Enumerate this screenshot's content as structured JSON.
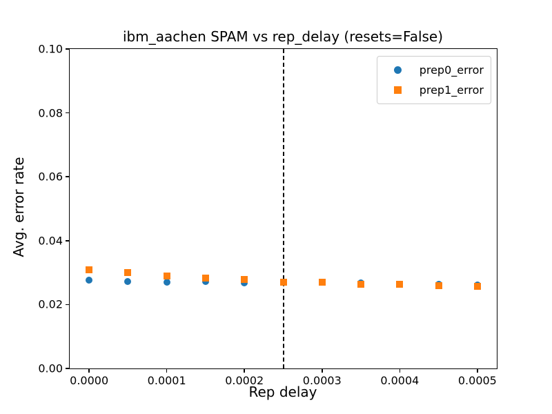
{
  "colors": {
    "prep0": "#1f77b4",
    "prep1": "#ff7f0e",
    "spine": "#000000",
    "background": "#ffffff",
    "legend_border": "#cccccc"
  },
  "chart_data": {
    "type": "scatter",
    "title": "ibm_aachen SPAM vs rep_delay (resets=False)",
    "xlabel": "Rep delay",
    "ylabel": "Avg. error rate",
    "xlim": [
      -2.5e-05,
      0.000525
    ],
    "ylim": [
      0.0,
      0.1
    ],
    "x_ticks": [
      0.0,
      0.0001,
      0.0002,
      0.0003,
      0.0004,
      0.0005
    ],
    "x_tick_labels": [
      "0.0000",
      "0.0001",
      "0.0002",
      "0.0003",
      "0.0004",
      "0.0005"
    ],
    "y_ticks": [
      0.0,
      0.02,
      0.04,
      0.06,
      0.08,
      0.1
    ],
    "y_tick_labels": [
      "0.00",
      "0.02",
      "0.04",
      "0.06",
      "0.08",
      "0.10"
    ],
    "grid": false,
    "legend_position": "upper right",
    "x": [
      0.0,
      5e-05,
      0.0001,
      0.00015,
      0.0002,
      0.00025,
      0.0003,
      0.00035,
      0.0004,
      0.00045,
      0.0005
    ],
    "series": [
      {
        "name": "prep0_error",
        "marker": "circle",
        "color": "#1f77b4",
        "values": [
          0.0276,
          0.0273,
          0.027,
          0.0272,
          0.0268,
          0.0271,
          0.027,
          0.0268,
          0.0264,
          0.0263,
          0.0261
        ]
      },
      {
        "name": "prep1_error",
        "marker": "square",
        "color": "#ff7f0e",
        "values": [
          0.0308,
          0.03,
          0.029,
          0.0284,
          0.0278,
          0.0271,
          0.0269,
          0.0264,
          0.0263,
          0.026,
          0.0258
        ]
      }
    ],
    "vline": {
      "x": 0.00025,
      "style": "dashed",
      "color": "#000000"
    }
  }
}
